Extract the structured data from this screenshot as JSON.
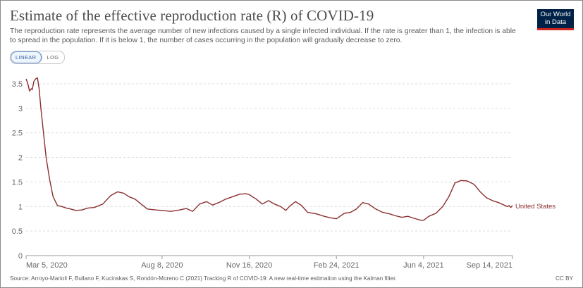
{
  "header": {
    "title": "Estimate of the effective reproduction rate (R) of COVID-19",
    "subtitle": "The reproduction rate represents the average number of new infections caused by a single infected individual. If the rate is greater than 1, the infection is able to spread in the population. If it is below 1, the number of cases occurring in the population will gradually decrease to zero."
  },
  "logo": {
    "line1": "Our World",
    "line2": "in Data"
  },
  "controls": {
    "linear_label": "LINEAR",
    "log_label": "LOG",
    "selected": "LINEAR"
  },
  "footer": {
    "source": "Source: Arroyo-Marioli F, Bullano F, Kucinskas S, Rondón-Moreno C (2021) Tracking R of COVID-19: A new real-time estimation using the Kalman filter.",
    "license": "CC BY"
  },
  "colors": {
    "series": "#8c2f2f",
    "grid": "#dcdcdc",
    "axis": "#777777"
  },
  "chart_data": {
    "type": "line",
    "title": "Estimate of the effective reproduction rate (R) of COVID-19",
    "xlabel": "",
    "ylabel": "",
    "ylim": [
      0,
      3.7
    ],
    "yticks": [
      0,
      0.5,
      1,
      1.5,
      2,
      2.5,
      3,
      3.5
    ],
    "ytick_labels": [
      "0",
      "0.5",
      "1",
      "1.5",
      "2",
      "2.5",
      "3",
      "3.5"
    ],
    "xlim": [
      "2020-03-05",
      "2021-09-14"
    ],
    "xticks": [
      "2020-03-05",
      "2020-08-08",
      "2020-11-16",
      "2021-02-24",
      "2021-06-04",
      "2021-09-14"
    ],
    "xtick_labels": [
      "Mar 5, 2020",
      "Aug 8, 2020",
      "Nov 16, 2020",
      "Feb 24, 2021",
      "Jun 4, 2021",
      "Sep 14, 2021"
    ],
    "grid": "horizontal dashed",
    "series": [
      {
        "name": "United States",
        "x": [
          "2020-03-05",
          "2020-03-07",
          "2020-03-09",
          "2020-03-11",
          "2020-03-12",
          "2020-03-14",
          "2020-03-16",
          "2020-03-18",
          "2020-03-20",
          "2020-03-22",
          "2020-03-25",
          "2020-03-28",
          "2020-04-01",
          "2020-04-05",
          "2020-04-10",
          "2020-04-15",
          "2020-04-20",
          "2020-04-25",
          "2020-05-01",
          "2020-05-08",
          "2020-05-15",
          "2020-05-22",
          "2020-06-01",
          "2020-06-10",
          "2020-06-18",
          "2020-06-25",
          "2020-07-01",
          "2020-07-08",
          "2020-07-15",
          "2020-07-22",
          "2020-08-01",
          "2020-08-08",
          "2020-08-18",
          "2020-08-28",
          "2020-09-05",
          "2020-09-12",
          "2020-09-20",
          "2020-09-28",
          "2020-10-05",
          "2020-10-12",
          "2020-10-20",
          "2020-10-28",
          "2020-11-05",
          "2020-11-12",
          "2020-11-16",
          "2020-11-24",
          "2020-12-01",
          "2020-12-08",
          "2020-12-15",
          "2020-12-22",
          "2020-12-28",
          "2021-01-01",
          "2021-01-08",
          "2021-01-15",
          "2021-01-22",
          "2021-02-01",
          "2021-02-10",
          "2021-02-17",
          "2021-02-24",
          "2021-03-05",
          "2021-03-12",
          "2021-03-19",
          "2021-03-26",
          "2021-04-02",
          "2021-04-10",
          "2021-04-18",
          "2021-04-26",
          "2021-05-03",
          "2021-05-10",
          "2021-05-17",
          "2021-05-24",
          "2021-06-01",
          "2021-06-04",
          "2021-06-10",
          "2021-06-18",
          "2021-06-26",
          "2021-07-03",
          "2021-07-10",
          "2021-07-17",
          "2021-07-24",
          "2021-08-01",
          "2021-08-08",
          "2021-08-15",
          "2021-08-22",
          "2021-08-29",
          "2021-09-03",
          "2021-09-08",
          "2021-09-10",
          "2021-09-12",
          "2021-09-14"
        ],
        "y": [
          3.6,
          3.5,
          3.35,
          3.4,
          3.38,
          3.55,
          3.6,
          3.62,
          3.4,
          3.0,
          2.5,
          2.0,
          1.55,
          1.2,
          1.02,
          1.0,
          0.97,
          0.95,
          0.92,
          0.93,
          0.97,
          0.98,
          1.05,
          1.22,
          1.3,
          1.27,
          1.2,
          1.15,
          1.05,
          0.95,
          0.93,
          0.92,
          0.9,
          0.93,
          0.96,
          0.9,
          1.05,
          1.1,
          1.03,
          1.08,
          1.15,
          1.2,
          1.25,
          1.26,
          1.24,
          1.15,
          1.05,
          1.12,
          1.05,
          1.0,
          0.92,
          1.0,
          1.1,
          1.02,
          0.88,
          0.85,
          0.8,
          0.77,
          0.75,
          0.86,
          0.88,
          0.95,
          1.08,
          1.05,
          0.95,
          0.88,
          0.85,
          0.81,
          0.78,
          0.8,
          0.76,
          0.72,
          0.72,
          0.8,
          0.86,
          1.0,
          1.2,
          1.48,
          1.53,
          1.52,
          1.45,
          1.3,
          1.18,
          1.12,
          1.08,
          1.04,
          1.0,
          1.02,
          0.98,
          1.02
        ]
      }
    ]
  }
}
